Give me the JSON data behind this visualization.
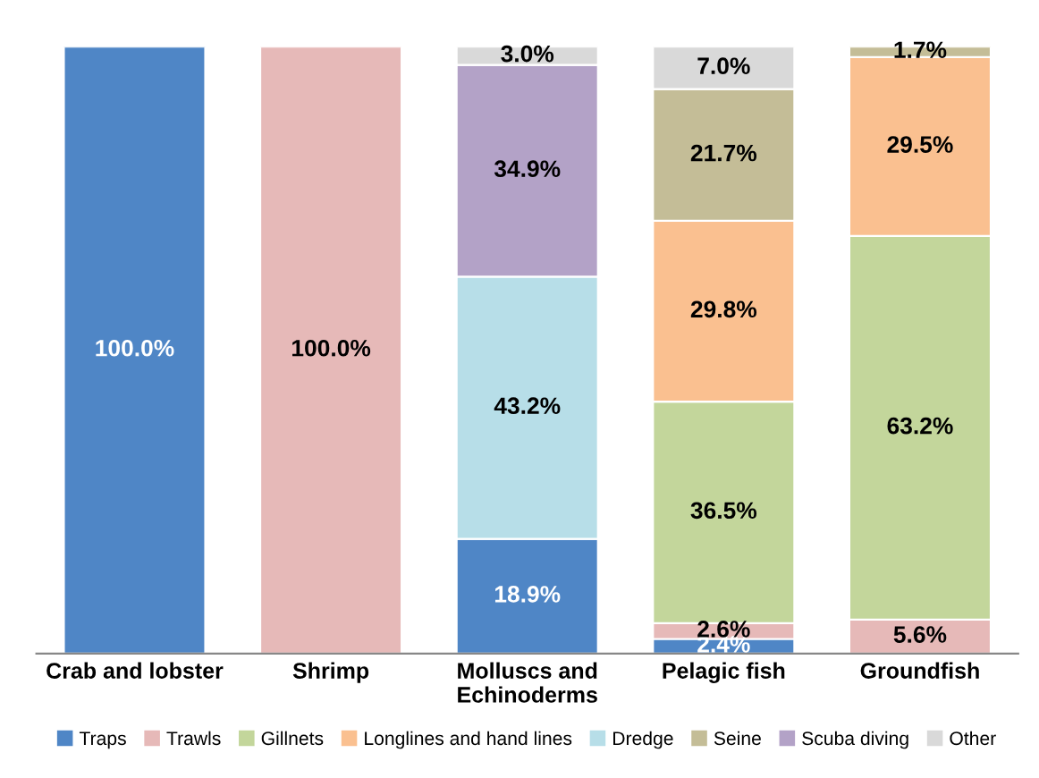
{
  "chart_data": {
    "type": "bar",
    "stacked": true,
    "categories": [
      "Crab and lobster",
      "Shrimp",
      "Molluscs and\nEchinoderms",
      "Pelagic fish",
      "Groundfish"
    ],
    "ylim": [
      0,
      100
    ],
    "tick_labels": "x",
    "legend": "bottom",
    "grid": false,
    "series": [
      {
        "name": "Traps",
        "color": "#4f86c6",
        "values": [
          100.0,
          null,
          18.9,
          2.4,
          null
        ],
        "value_labels": [
          "100.0%",
          null,
          "18.9%",
          "2.4%",
          null
        ]
      },
      {
        "name": "Trawls",
        "color": "#e6b9b8",
        "values": [
          null,
          100.0,
          null,
          2.6,
          5.6
        ],
        "value_labels": [
          null,
          "100.0%",
          null,
          "2.6%",
          "5.6%"
        ]
      },
      {
        "name": "Gillnets",
        "color": "#c3d69b",
        "values": [
          null,
          null,
          null,
          36.5,
          63.2
        ],
        "value_labels": [
          null,
          null,
          null,
          "36.5%",
          "63.2%"
        ]
      },
      {
        "name": "Longlines and hand lines",
        "color": "#fac090",
        "values": [
          null,
          null,
          null,
          29.8,
          29.5
        ],
        "value_labels": [
          null,
          null,
          null,
          "29.8%",
          "29.5%"
        ]
      },
      {
        "name": "Dredge",
        "color": "#b7dee8",
        "values": [
          null,
          null,
          43.2,
          null,
          null
        ],
        "value_labels": [
          null,
          null,
          "43.2%",
          null,
          null
        ]
      },
      {
        "name": "Seine",
        "color": "#c4bd97",
        "values": [
          null,
          null,
          null,
          21.7,
          1.7
        ],
        "value_labels": [
          null,
          null,
          null,
          "21.7%",
          "1.7%"
        ]
      },
      {
        "name": "Scuba diving",
        "color": "#b3a2c7",
        "values": [
          null,
          null,
          34.9,
          null,
          null
        ],
        "value_labels": [
          null,
          null,
          "34.9%",
          null,
          null
        ]
      },
      {
        "name": "Other",
        "color": "#d9d9d9",
        "values": [
          null,
          null,
          3.0,
          7.0,
          null
        ],
        "value_labels": [
          null,
          null,
          "3.0%",
          "7.0%",
          null
        ]
      }
    ]
  }
}
